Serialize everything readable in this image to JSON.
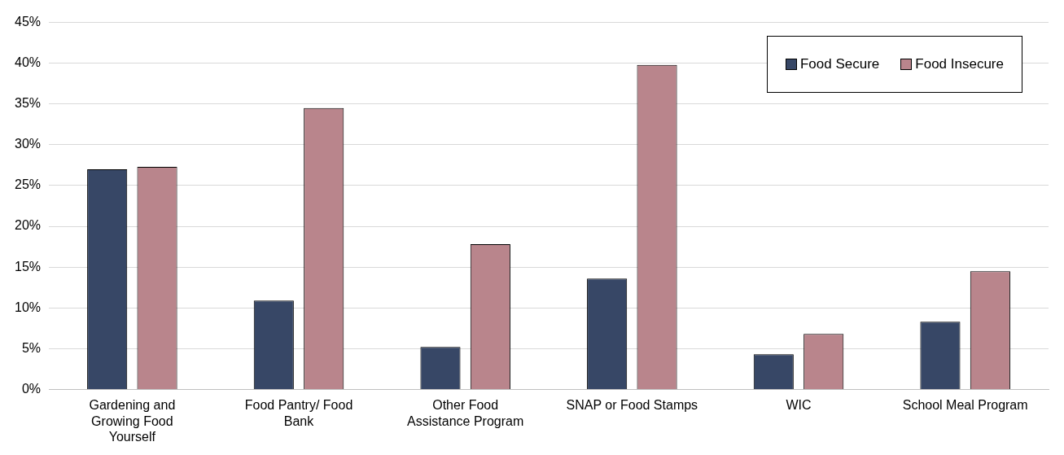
{
  "chart_data": {
    "type": "bar",
    "categories": [
      "Gardening and Growing Food Yourself",
      "Food Pantry/ Food Bank",
      "Other Food Assistance Program",
      "SNAP or Food Stamps",
      "WIC",
      "School Meal Program"
    ],
    "series": [
      {
        "name": "Food Secure",
        "color": "#374766",
        "values": [
          27.0,
          10.9,
          5.2,
          13.6,
          4.3,
          8.3
        ]
      },
      {
        "name": "Food Insecure",
        "color": "#b9858c",
        "values": [
          27.3,
          34.5,
          17.8,
          39.8,
          6.8,
          14.5
        ]
      }
    ],
    "ylim": [
      0,
      45
    ],
    "yticks": [
      {
        "value": 0,
        "label": "0%"
      },
      {
        "value": 5,
        "label": "5%"
      },
      {
        "value": 10,
        "label": "10%"
      },
      {
        "value": 15,
        "label": "15%"
      },
      {
        "value": 20,
        "label": "20%"
      },
      {
        "value": 25,
        "label": "25%"
      },
      {
        "value": 30,
        "label": "30%"
      },
      {
        "value": 35,
        "label": "35%"
      },
      {
        "value": 40,
        "label": "40%"
      },
      {
        "value": 45,
        "label": "45%"
      }
    ],
    "grid": "y",
    "legend": "top right"
  }
}
